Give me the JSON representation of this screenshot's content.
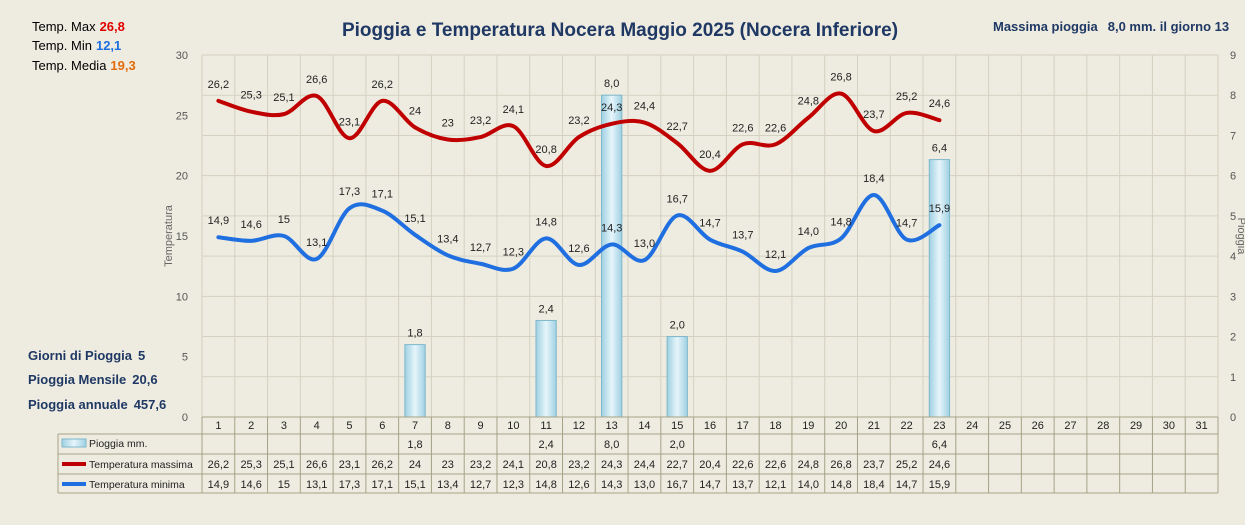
{
  "header": {
    "temp_max_label": "Temp. Max",
    "temp_max_value": "26,8",
    "temp_min_label": "Temp.  Min",
    "temp_min_value": "12,1",
    "temp_avg_label": "Temp. Media",
    "temp_avg_value": "19,3",
    "max_rain_label": "Massima pioggia",
    "max_rain_value": "8,0  mm. il giorno 13"
  },
  "stats": {
    "rain_days_label": "Giorni di Pioggia",
    "rain_days_value": "5",
    "rain_month_label": "Pioggia Mensile",
    "rain_month_value": "20,6",
    "rain_year_label": "Pioggia annuale",
    "rain_year_value": "457,6"
  },
  "colors": {
    "max": "#c00000",
    "min": "#1f6fe0",
    "rain_fill": "#c3e3ee",
    "title": "#1f3864",
    "max_text": "#e00000",
    "min_text": "#1f6fe0",
    "avg_text": "#e26b0a"
  },
  "chart_data": {
    "type": "line",
    "title": "Pioggia e Temperatura Nocera Maggio 2025 (Nocera Inferiore)",
    "ylabel": "Temperatura",
    "y2label": "Pioggia",
    "ylim": [
      0,
      30
    ],
    "y2lim": [
      0,
      9
    ],
    "yticks": [
      "0",
      "5",
      "10",
      "15",
      "20",
      "25",
      "30"
    ],
    "y2ticks": [
      "0",
      "1",
      "2",
      "3",
      "4",
      "5",
      "6",
      "7",
      "8",
      "9"
    ],
    "categories": [
      "1",
      "2",
      "3",
      "4",
      "5",
      "6",
      "7",
      "8",
      "9",
      "10",
      "11",
      "12",
      "13",
      "14",
      "15",
      "16",
      "17",
      "18",
      "19",
      "20",
      "21",
      "22",
      "23",
      "24",
      "25",
      "26",
      "27",
      "28",
      "29",
      "30",
      "31"
    ],
    "series": [
      {
        "name": "Pioggia mm.",
        "type": "bar",
        "axis": "y2",
        "values": [
          null,
          null,
          null,
          null,
          null,
          null,
          1.8,
          null,
          null,
          null,
          2.4,
          null,
          8.0,
          null,
          2.0,
          null,
          null,
          null,
          null,
          null,
          null,
          null,
          6.4,
          null,
          null,
          null,
          null,
          null,
          null,
          null,
          null
        ],
        "labels": [
          "",
          "",
          "",
          "",
          "",
          "",
          "1,8",
          "",
          "",
          "",
          "2,4",
          "",
          "8,0",
          "",
          "2,0",
          "",
          "",
          "",
          "",
          "",
          "",
          "",
          "6,4",
          "",
          "",
          "",
          "",
          "",
          "",
          "",
          ""
        ]
      },
      {
        "name": "Temperatura massima",
        "type": "line",
        "axis": "y",
        "values": [
          26.2,
          25.3,
          25.1,
          26.6,
          23.1,
          26.2,
          24,
          23,
          23.2,
          24.1,
          20.8,
          23.2,
          24.3,
          24.4,
          22.7,
          20.4,
          22.6,
          22.6,
          24.8,
          26.8,
          23.7,
          25.2,
          24.6,
          null,
          null,
          null,
          null,
          null,
          null,
          null,
          null
        ],
        "labels": [
          "26,2",
          "25,3",
          "25,1",
          "26,6",
          "23,1",
          "26,2",
          "24",
          "23",
          "23,2",
          "24,1",
          "20,8",
          "23,2",
          "24,3",
          "24,4",
          "22,7",
          "20,4",
          "22,6",
          "22,6",
          "24,8",
          "26,8",
          "23,7",
          "25,2",
          "24,6",
          "",
          "",
          "",
          "",
          "",
          "",
          "",
          ""
        ]
      },
      {
        "name": "Temperatura minima",
        "type": "line",
        "axis": "y",
        "values": [
          14.9,
          14.6,
          15,
          13.1,
          17.3,
          17.1,
          15.1,
          13.4,
          12.7,
          12.3,
          14.8,
          12.6,
          14.3,
          13.0,
          16.7,
          14.7,
          13.7,
          12.1,
          14.0,
          14.8,
          18.4,
          14.7,
          15.9,
          null,
          null,
          null,
          null,
          null,
          null,
          null,
          null
        ],
        "labels": [
          "14,9",
          "14,6",
          "15",
          "13,1",
          "17,3",
          "17,1",
          "15,1",
          "13,4",
          "12,7",
          "12,3",
          "14,8",
          "12,6",
          "14,3",
          "13,0",
          "16,7",
          "14,7",
          "13,7",
          "12,1",
          "14,0",
          "14,8",
          "18,4",
          "14,7",
          "15,9",
          "",
          "",
          "",
          "",
          "",
          "",
          "",
          ""
        ]
      }
    ],
    "grid": true,
    "legend": "bottom data table"
  }
}
